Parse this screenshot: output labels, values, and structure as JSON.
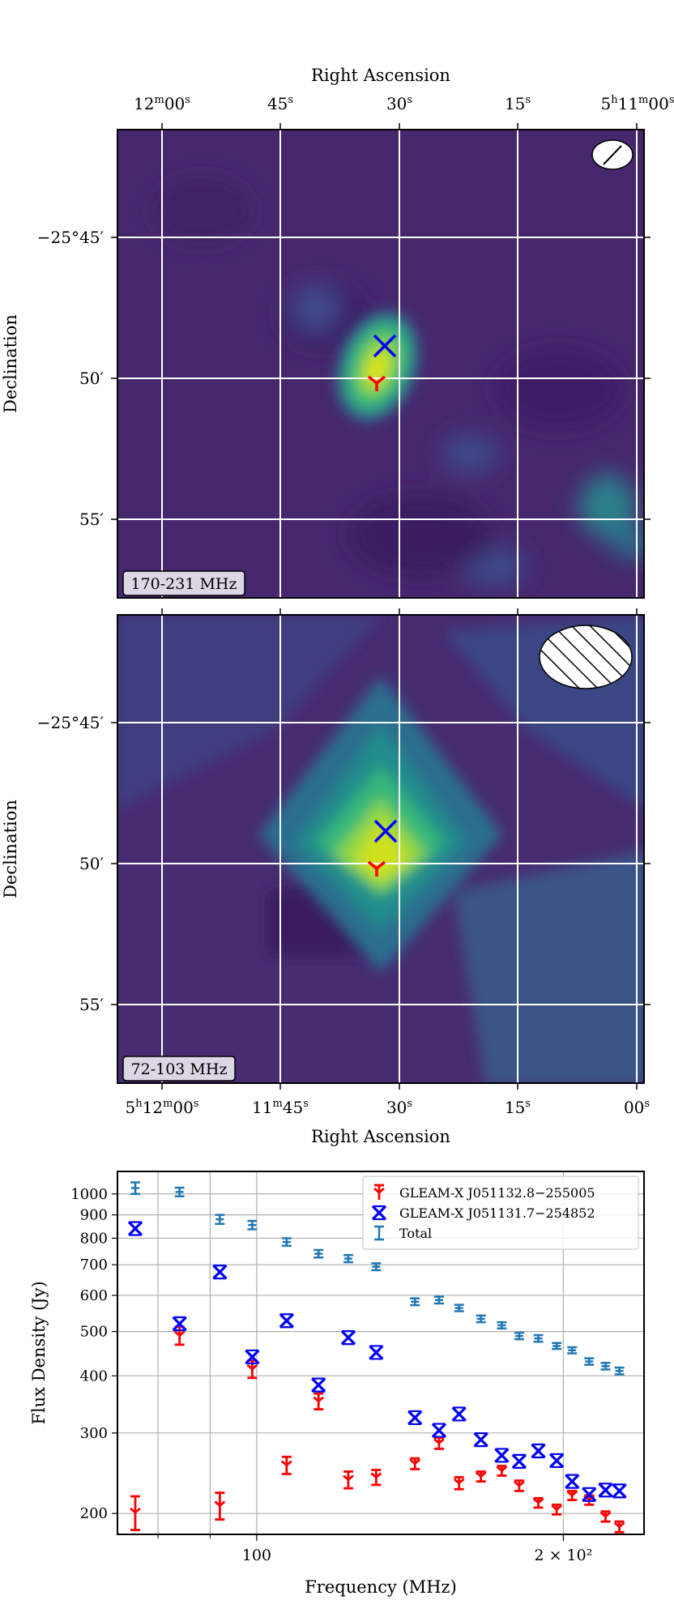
{
  "colors": {
    "total": "#1f77b4",
    "source_a": "#ff0000",
    "source_b": "#0000ff",
    "map_bg": "#44266e",
    "map_peak_high": "#dde318",
    "map_peak_low": "#cfe11c",
    "grid": "#ffffff"
  },
  "panel_top": {
    "label": "170-231 MHz",
    "x_axis_title": "Right Ascension",
    "y_axis_title": "Declination",
    "ra_ticks": [
      {
        "ra_sec": 60,
        "label_main": "12",
        "label_sup": "m",
        "label_main2": "00",
        "label_sup2": "s"
      },
      {
        "ra_sec": 45,
        "label_main": "45",
        "label_sup": "s",
        "label_main2": "",
        "label_sup2": ""
      },
      {
        "ra_sec": 30,
        "label_main": "30",
        "label_sup": "s",
        "label_main2": "",
        "label_sup2": ""
      },
      {
        "ra_sec": 15,
        "label_main": "15",
        "label_sup": "s",
        "label_main2": "",
        "label_sup2": ""
      },
      {
        "ra_sec": 0,
        "label_main": "5",
        "label_sup": "h",
        "label_main2": "11",
        "label_sup2": "m",
        "label_main3": "00",
        "label_sup3": "s"
      }
    ],
    "dec_ticks": [
      {
        "dec_arcmin": 45,
        "label": "−25°45′"
      },
      {
        "dec_arcmin": 50,
        "label": "50′"
      },
      {
        "dec_arcmin": 55,
        "label": "55′"
      }
    ]
  },
  "panel_mid": {
    "label": "72-103 MHz",
    "x_axis_title": "Right Ascension",
    "y_axis_title": "Declination",
    "ra_ticks": [
      {
        "ra_sec": 60,
        "label": "5h12m00s"
      },
      {
        "ra_sec": 45,
        "label": "11m45s"
      },
      {
        "ra_sec": 30,
        "label": "30s"
      },
      {
        "ra_sec": 15,
        "label": "15s"
      },
      {
        "ra_sec": 0,
        "label": "00s"
      }
    ],
    "dec_ticks": [
      {
        "dec_arcmin": 45,
        "label": "−25°45′"
      },
      {
        "dec_arcmin": 50,
        "label": "50′"
      },
      {
        "dec_arcmin": 55,
        "label": "55′"
      }
    ]
  },
  "chart_data": {
    "type": "scatter",
    "title": "",
    "xlabel": "Frequency (MHz)",
    "ylabel": "Flux Density (Jy)",
    "x_scale": "log",
    "y_scale": "log",
    "xlim": [
      73,
      240
    ],
    "ylim": [
      180,
      1120
    ],
    "x_tick_labels": [
      {
        "value": 100,
        "label": "100"
      },
      {
        "value": 200,
        "label": "2 × 10²"
      }
    ],
    "y_tick_labels": [
      200,
      300,
      400,
      500,
      600,
      700,
      800,
      900,
      1000
    ],
    "grid": true,
    "legend_placement": "top-right",
    "series": [
      {
        "name": "GLEAM-X J051132.8−255005",
        "color": "#ff0000",
        "marker": "tri_down",
        "points": [
          {
            "x": 76,
            "y": 201,
            "err": 17
          },
          {
            "x": 84,
            "y": 490,
            "err": 22
          },
          {
            "x": 92,
            "y": 208,
            "err": 14
          },
          {
            "x": 99,
            "y": 414,
            "err": 18
          },
          {
            "x": 107,
            "y": 255,
            "err": 11
          },
          {
            "x": 115,
            "y": 352,
            "err": 14
          },
          {
            "x": 123,
            "y": 237,
            "err": 10
          },
          {
            "x": 131,
            "y": 240,
            "err": 9
          },
          {
            "x": 143,
            "y": 257,
            "err": 7
          },
          {
            "x": 151,
            "y": 285,
            "err": 8
          },
          {
            "x": 158,
            "y": 233,
            "err": 7
          },
          {
            "x": 166,
            "y": 241,
            "err": 6
          },
          {
            "x": 174,
            "y": 248,
            "err": 6
          },
          {
            "x": 181,
            "y": 230,
            "err": 6
          },
          {
            "x": 189,
            "y": 211,
            "err": 5
          },
          {
            "x": 197,
            "y": 204,
            "err": 5
          },
          {
            "x": 204,
            "y": 219,
            "err": 5
          },
          {
            "x": 212,
            "y": 214,
            "err": 5
          },
          {
            "x": 220,
            "y": 197,
            "err": 5
          },
          {
            "x": 227,
            "y": 187,
            "err": 5
          }
        ]
      },
      {
        "name": "GLEAM-X J051131.7−254852",
        "color": "#0000ff",
        "marker": "x_bowtie",
        "points": [
          {
            "x": 76,
            "y": 840,
            "err": 25
          },
          {
            "x": 84,
            "y": 520,
            "err": 18
          },
          {
            "x": 92,
            "y": 675,
            "err": 18
          },
          {
            "x": 99,
            "y": 440,
            "err": 14
          },
          {
            "x": 107,
            "y": 528,
            "err": 12
          },
          {
            "x": 115,
            "y": 382,
            "err": 10
          },
          {
            "x": 123,
            "y": 485,
            "err": 10
          },
          {
            "x": 131,
            "y": 450,
            "err": 9
          },
          {
            "x": 143,
            "y": 324,
            "err": 7
          },
          {
            "x": 151,
            "y": 304,
            "err": 7
          },
          {
            "x": 158,
            "y": 330,
            "err": 7
          },
          {
            "x": 166,
            "y": 290,
            "err": 6
          },
          {
            "x": 174,
            "y": 268,
            "err": 6
          },
          {
            "x": 181,
            "y": 260,
            "err": 5
          },
          {
            "x": 189,
            "y": 274,
            "err": 5
          },
          {
            "x": 197,
            "y": 261,
            "err": 5
          },
          {
            "x": 204,
            "y": 235,
            "err": 5
          },
          {
            "x": 212,
            "y": 220,
            "err": 5
          },
          {
            "x": 220,
            "y": 225,
            "err": 5
          },
          {
            "x": 227,
            "y": 224,
            "err": 5
          }
        ]
      },
      {
        "name": "Total",
        "color": "#1f77b4",
        "marker": "errorbar",
        "points": [
          {
            "x": 76,
            "y": 1030,
            "err": 30
          },
          {
            "x": 84,
            "y": 1010,
            "err": 22
          },
          {
            "x": 92,
            "y": 880,
            "err": 20
          },
          {
            "x": 99,
            "y": 855,
            "err": 18
          },
          {
            "x": 107,
            "y": 785,
            "err": 15
          },
          {
            "x": 115,
            "y": 740,
            "err": 14
          },
          {
            "x": 123,
            "y": 722,
            "err": 13
          },
          {
            "x": 131,
            "y": 693,
            "err": 12
          },
          {
            "x": 143,
            "y": 581,
            "err": 10
          },
          {
            "x": 151,
            "y": 586,
            "err": 10
          },
          {
            "x": 158,
            "y": 563,
            "err": 9
          },
          {
            "x": 166,
            "y": 533,
            "err": 9
          },
          {
            "x": 174,
            "y": 516,
            "err": 8
          },
          {
            "x": 181,
            "y": 489,
            "err": 8
          },
          {
            "x": 189,
            "y": 483,
            "err": 8
          },
          {
            "x": 197,
            "y": 465,
            "err": 7
          },
          {
            "x": 204,
            "y": 455,
            "err": 7
          },
          {
            "x": 212,
            "y": 430,
            "err": 7
          },
          {
            "x": 220,
            "y": 420,
            "err": 7
          },
          {
            "x": 227,
            "y": 410,
            "err": 7
          }
        ]
      }
    ]
  }
}
